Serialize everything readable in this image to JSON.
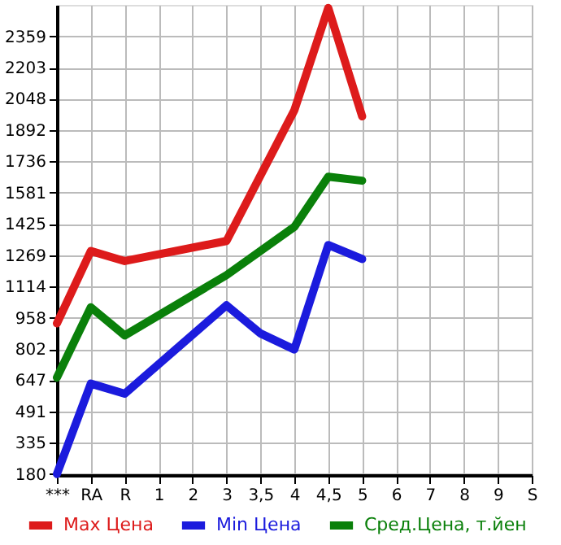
{
  "chart_data": {
    "type": "line",
    "categories": [
      "***",
      "RA",
      "R",
      "1",
      "2",
      "3",
      "3,5",
      "4",
      "4,5",
      "5",
      "6",
      "7",
      "8",
      "9",
      "S"
    ],
    "series": [
      {
        "name": "Max Цена",
        "color": "#dd1b1b",
        "values": [
          930,
          1290,
          1240,
          null,
          null,
          1340,
          null,
          1990,
          2500,
          1960,
          null,
          null,
          null,
          null,
          null
        ]
      },
      {
        "name": "Min Цена",
        "color": "#1b1bdd",
        "values": [
          180,
          630,
          580,
          null,
          null,
          1020,
          880,
          800,
          1320,
          1250,
          null,
          null,
          null,
          null,
          null
        ]
      },
      {
        "name": "Сред.Цена, т.йен",
        "color": "#0a800a",
        "values": [
          660,
          1010,
          870,
          null,
          null,
          1170,
          null,
          1410,
          1660,
          1640,
          null,
          null,
          null,
          null,
          null
        ]
      }
    ],
    "ylim": [
      175,
      2515
    ],
    "yticks": [
      180,
      335,
      491,
      647,
      802,
      958,
      1114,
      1269,
      1425,
      1581,
      1736,
      1892,
      2048,
      2203,
      2359
    ],
    "grid": true,
    "legend": "bottom",
    "marker": "none",
    "line_style": "solid"
  }
}
